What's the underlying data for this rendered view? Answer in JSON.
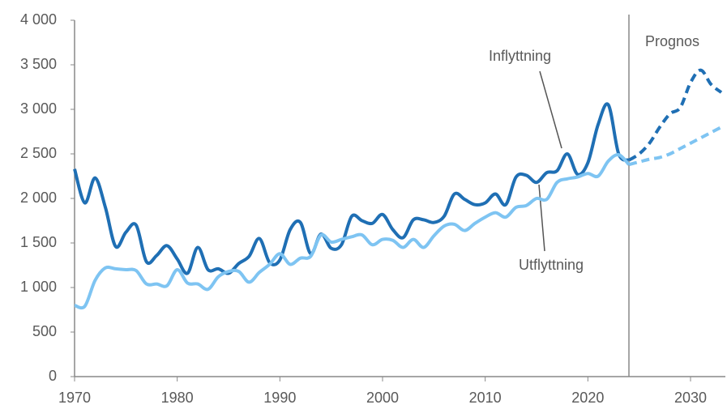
{
  "chart_data": {
    "type": "line",
    "x": [
      1970,
      1971,
      1972,
      1973,
      1974,
      1975,
      1976,
      1977,
      1978,
      1979,
      1980,
      1981,
      1982,
      1983,
      1984,
      1985,
      1986,
      1987,
      1988,
      1989,
      1990,
      1991,
      1992,
      1993,
      1994,
      1995,
      1996,
      1997,
      1998,
      1999,
      2000,
      2001,
      2002,
      2003,
      2004,
      2005,
      2006,
      2007,
      2008,
      2009,
      2010,
      2011,
      2012,
      2013,
      2014,
      2015,
      2016,
      2017,
      2018,
      2019,
      2020,
      2021,
      2022,
      2023,
      2024,
      2025,
      2026,
      2027,
      2028,
      2029,
      2030,
      2031,
      2032,
      2033
    ],
    "series": [
      {
        "name": "Inflyttning",
        "color": "#1f6fb4",
        "values": [
          2330,
          1950,
          2230,
          1900,
          1460,
          1620,
          1700,
          1290,
          1360,
          1470,
          1320,
          1160,
          1450,
          1200,
          1210,
          1160,
          1270,
          1350,
          1550,
          1280,
          1310,
          1650,
          1730,
          1380,
          1600,
          1440,
          1480,
          1800,
          1750,
          1720,
          1820,
          1650,
          1560,
          1760,
          1760,
          1730,
          1800,
          2050,
          1990,
          1930,
          1950,
          2050,
          1930,
          2240,
          2260,
          2180,
          2290,
          2310,
          2500,
          2270,
          2400,
          2830,
          3050,
          2500,
          2430,
          null,
          null,
          null,
          null,
          null,
          null,
          null,
          null,
          null
        ],
        "forecast": [
          null,
          null,
          null,
          null,
          null,
          null,
          null,
          null,
          null,
          null,
          null,
          null,
          null,
          null,
          null,
          null,
          null,
          null,
          null,
          null,
          null,
          null,
          null,
          null,
          null,
          null,
          null,
          null,
          null,
          null,
          null,
          null,
          null,
          null,
          null,
          null,
          null,
          null,
          null,
          null,
          null,
          null,
          null,
          null,
          null,
          null,
          null,
          null,
          null,
          null,
          null,
          null,
          null,
          null,
          2430,
          2500,
          2620,
          2800,
          2950,
          3020,
          3300,
          3440,
          3280,
          3190
        ]
      },
      {
        "name": "Utflyttning",
        "color": "#7ec4f2",
        "values": [
          800,
          790,
          1080,
          1220,
          1210,
          1200,
          1190,
          1040,
          1040,
          1020,
          1200,
          1050,
          1040,
          980,
          1120,
          1180,
          1180,
          1060,
          1170,
          1260,
          1380,
          1260,
          1330,
          1350,
          1590,
          1510,
          1540,
          1570,
          1590,
          1480,
          1540,
          1530,
          1450,
          1540,
          1450,
          1580,
          1690,
          1710,
          1640,
          1720,
          1790,
          1840,
          1790,
          1900,
          1920,
          2000,
          1990,
          2180,
          2220,
          2240,
          2280,
          2250,
          2420,
          2490,
          2380,
          null,
          null,
          null,
          null,
          null,
          null,
          null,
          null,
          null
        ],
        "forecast": [
          null,
          null,
          null,
          null,
          null,
          null,
          null,
          null,
          null,
          null,
          null,
          null,
          null,
          null,
          null,
          null,
          null,
          null,
          null,
          null,
          null,
          null,
          null,
          null,
          null,
          null,
          null,
          null,
          null,
          null,
          null,
          null,
          null,
          null,
          null,
          null,
          null,
          null,
          null,
          null,
          null,
          null,
          null,
          null,
          null,
          null,
          null,
          null,
          null,
          null,
          null,
          null,
          null,
          null,
          2380,
          2410,
          2440,
          2460,
          2500,
          2560,
          2620,
          2680,
          2740,
          2800
        ]
      }
    ],
    "annotation": {
      "text": "Prognos",
      "x": 2024
    },
    "xlim": [
      1970,
      2033
    ],
    "xticks": [
      1970,
      1980,
      1990,
      2000,
      2010,
      2020,
      2030
    ],
    "ylim": [
      0,
      4000
    ],
    "yticks": [
      0,
      500,
      {
        "value": 1000,
        "label": "1 000"
      },
      {
        "value": 1500,
        "label": "1 500"
      },
      {
        "value": 2000,
        "label": "2 000"
      },
      {
        "value": 2500,
        "label": "2 500"
      },
      {
        "value": 3000,
        "label": "3 000"
      },
      {
        "value": 3500,
        "label": "3 500"
      },
      {
        "value": 4000,
        "label": "4 000"
      }
    ]
  }
}
